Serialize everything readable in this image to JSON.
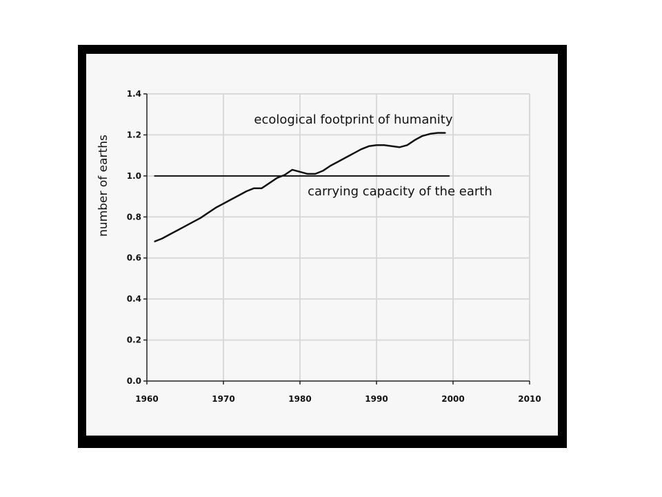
{
  "chart_data": {
    "type": "line",
    "title": "",
    "xlabel": "",
    "ylabel": "number of earths",
    "xlim": [
      1960,
      2010
    ],
    "ylim": [
      0.0,
      1.4
    ],
    "xticks": [
      1960,
      1970,
      1980,
      1990,
      2000,
      2010
    ],
    "xtick_labels": [
      "1960",
      "1970",
      "1980",
      "1990",
      "2000",
      "2010"
    ],
    "yticks": [
      0.0,
      0.2,
      0.4,
      0.6,
      0.8,
      1.0,
      1.2,
      1.4
    ],
    "ytick_labels": [
      "0.0",
      "0.2",
      "0.4",
      "0.6",
      "0.8",
      "1.0",
      "1.2",
      "1.4"
    ],
    "grid": true,
    "series": [
      {
        "name": "ecological footprint of humanity",
        "x": [
          1961,
          1962,
          1963,
          1964,
          1965,
          1966,
          1967,
          1968,
          1969,
          1970,
          1971,
          1972,
          1973,
          1974,
          1975,
          1976,
          1977,
          1978,
          1979,
          1980,
          1981,
          1982,
          1983,
          1984,
          1985,
          1986,
          1987,
          1988,
          1989,
          1990,
          1991,
          1992,
          1993,
          1994,
          1995,
          1996,
          1997,
          1998,
          1999
        ],
        "y": [
          0.68,
          0.695,
          0.715,
          0.735,
          0.755,
          0.775,
          0.795,
          0.82,
          0.845,
          0.865,
          0.885,
          0.905,
          0.925,
          0.94,
          0.94,
          0.965,
          0.99,
          1.005,
          1.03,
          1.02,
          1.01,
          1.01,
          1.025,
          1.05,
          1.07,
          1.09,
          1.11,
          1.13,
          1.145,
          1.15,
          1.15,
          1.145,
          1.14,
          1.15,
          1.175,
          1.195,
          1.205,
          1.21,
          1.21
        ]
      },
      {
        "name": "carrying capacity of the earth",
        "x": [
          1961,
          1999.5
        ],
        "y": [
          1.0,
          1.0
        ]
      }
    ],
    "annotations": [
      {
        "text": "ecological footprint of humanity",
        "x": 1974,
        "y": 1.255
      },
      {
        "text": "carrying capacity of the earth",
        "x": 1981,
        "y": 0.905
      }
    ],
    "colors": {
      "line": "#111111",
      "grid": "#d9d9d9",
      "axis": "#222222",
      "background": "#f7f7f7",
      "frame": "#000000"
    }
  }
}
